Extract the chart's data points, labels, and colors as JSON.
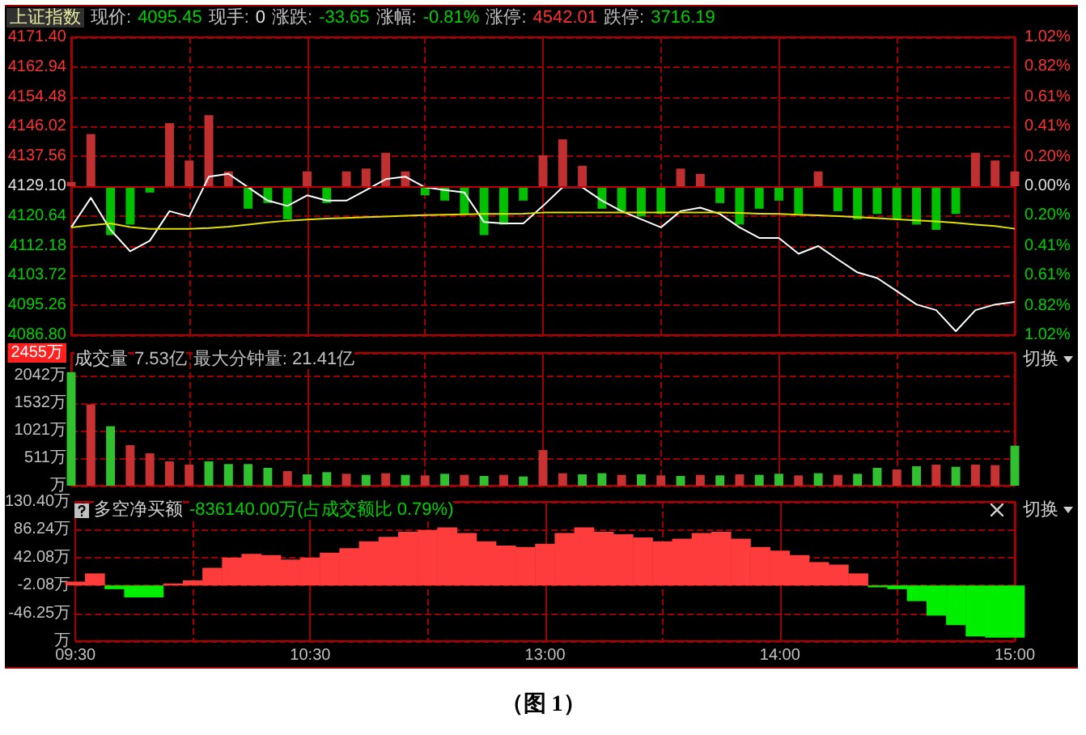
{
  "chart_data": [
    {
      "type": "line",
      "title": "上证指数",
      "annotations": [
        "现价:",
        "4095.45",
        "现手:",
        "0",
        "涨跌:",
        "-33.65",
        "涨幅:",
        "-0.81%",
        "涨停:",
        "4542.01",
        "跌停:",
        "3716.19"
      ],
      "tick_labels": "y",
      "grid": true,
      "marker": "none",
      "ylim": [
        4086.8,
        4171.4
      ],
      "yticks": [
        {
          "value": 4086.8,
          "label": "4086.80"
        },
        4095.26,
        4103.72,
        4112.18,
        4120.64,
        {
          "value": 4129.1,
          "label": "4129.10"
        },
        4137.56,
        4146.02,
        4154.48,
        4162.94,
        {
          "value": 4171.4,
          "label": "4171.40"
        }
      ],
      "y2lim": [
        -1.02,
        1.02
      ],
      "y2ticks": [
        {
          "value": -1.02,
          "label": "1.02%"
        },
        {
          "value": -0.82,
          "label": "0.82%"
        },
        {
          "value": -0.61,
          "label": "0.61%"
        },
        {
          "value": -0.41,
          "label": "0.41%"
        },
        {
          "value": -0.2,
          "label": "0.20%"
        },
        {
          "value": 0,
          "label": "0.00%"
        },
        {
          "value": 0.2,
          "label": "0.20%"
        },
        {
          "value": 0.41,
          "label": "0.41%"
        },
        {
          "value": 0.61,
          "label": "0.61%"
        },
        {
          "value": 0.82,
          "label": "0.82%"
        },
        {
          "value": 1.02,
          "label": "1.02%"
        }
      ],
      "ref_lines": [
        {
          "axis": "y",
          "value": 4129.1,
          "color": "#c00000"
        }
      ],
      "series": [
        {
          "type": "bar",
          "base": [
            4129.1,
            4129.1,
            4129.1,
            4129.1,
            4129.1,
            4129.1,
            4129.1,
            4129.1,
            4129.1,
            4129.1,
            4129.1,
            4129.1,
            4129.1,
            4129.1,
            4129.1,
            4129.1,
            4129.1,
            4129.1,
            4129.1,
            4129.1,
            4129.1,
            4129.1,
            4129.1,
            4129.1,
            4129.1,
            4129.1,
            4129.1,
            4129.1,
            4129.1,
            4129.1,
            4129.1,
            4129.1,
            4129.1,
            4129.1,
            4129.1,
            4129.1,
            4129.1,
            4129.1,
            4129.1,
            4129.1,
            4129.1,
            4129.1,
            4129.1,
            4129.1,
            4129.1,
            4129.1,
            4129.1,
            4129.1,
            4129.1
          ],
          "colors": [
            "#c03030",
            "#c03030",
            "#00c000",
            "#00c000",
            "#00c000",
            "#c03030",
            "#c03030",
            "#c03030",
            "#c03030",
            "#00c000",
            "#00c000",
            "#00c000",
            "#c03030",
            "#00c000",
            "#c03030",
            "#c03030",
            "#c03030",
            "#c03030",
            "#00c000",
            "#00c000",
            "#00c000",
            "#00c000",
            "#00c000",
            "#00c000",
            "#c03030",
            "#c03030",
            "#c03030",
            "#00c000",
            "#00c000",
            "#00c000",
            "#00c000",
            "#c03030",
            "#c03030",
            "#00c000",
            "#00c000",
            "#00c000",
            "#00c000",
            "#00c000",
            "#c03030",
            "#00c000",
            "#00c000",
            "#00c000",
            "#00c000",
            "#00c000",
            "#00c000",
            "#00c000",
            "#c03030",
            "#c03030",
            "#c03030"
          ],
          "values": [
            1.2,
            14.8,
            -13.9,
            -10.9,
            -1.8,
            17.9,
            7.3,
            20.2,
            4.2,
            -6.4,
            -4.8,
            -9.4,
            4.2,
            -4.8,
            4.2,
            5.0,
            9.5,
            4.2,
            -2.6,
            -4.1,
            -7.9,
            -13.9,
            -10.9,
            -4.1,
            8.8,
            13.3,
            5.8,
            -6.4,
            -7.1,
            -8.6,
            -7.9,
            5.0,
            3.5,
            -4.8,
            -10.9,
            -6.4,
            -4.1,
            -7.9,
            4.2,
            -7.1,
            -9.4,
            -7.9,
            -9.4,
            -10.9,
            -12.4,
            -7.9,
            9.5,
            7.3,
            4.2
          ]
        },
        {
          "color": "#ffffff",
          "values": [
            4117.4,
            4125.8,
            4116.7,
            4110.6,
            4113.6,
            4122.0,
            4120.5,
            4131.8,
            4132.6,
            4128.8,
            4125.0,
            4123.5,
            4126.5,
            4125.0,
            4125.0,
            4128.0,
            4131.1,
            4131.8,
            4128.8,
            4128.0,
            4127.3,
            4118.9,
            4118.5,
            4118.5,
            4123.5,
            4128.8,
            4128.8,
            4125.0,
            4122.0,
            4119.7,
            4117.4,
            4122.0,
            4123.0,
            4121.2,
            4117.4,
            4114.4,
            4114.4,
            4109.9,
            4112.1,
            4108.3,
            4104.6,
            4103.0,
            4099.3,
            4095.5,
            4093.9,
            4087.9,
            4093.9,
            4095.5,
            4096.2
          ]
        },
        {
          "color": "#e0e000",
          "values": [
            4117.4,
            4118.0,
            4118.5,
            4117.5,
            4117.0,
            4117.0,
            4117.0,
            4117.2,
            4117.6,
            4118.2,
            4118.8,
            4119.3,
            4119.6,
            4119.9,
            4120.1,
            4120.3,
            4120.5,
            4120.7,
            4120.9,
            4121.0,
            4121.1,
            4121.2,
            4121.2,
            4121.3,
            4121.6,
            4121.6,
            4121.6,
            4121.6,
            4121.6,
            4121.6,
            4121.6,
            4121.6,
            4121.6,
            4121.6,
            4121.5,
            4121.3,
            4121.2,
            4121.0,
            4120.8,
            4120.6,
            4120.3,
            4120.0,
            4119.7,
            4119.4,
            4119.1,
            4118.7,
            4118.2,
            4117.8,
            4117.0
          ]
        }
      ]
    },
    {
      "type": "bar",
      "title": "成交量",
      "annotations": [
        "7.53亿",
        "最大分钟量: 21.41亿",
        "切换"
      ],
      "tick_labels": "y",
      "grid": true,
      "ylim": [
        0,
        2455
      ],
      "yticks": [
        {
          "value": 0,
          "label": "万"
        },
        {
          "value": 511,
          "label": "511万"
        },
        {
          "value": 1021,
          "label": "1021万"
        },
        {
          "value": 1532,
          "label": "1532万"
        },
        {
          "value": 2042,
          "label": "2042万"
        },
        {
          "value": 2455,
          "label": "2455万"
        }
      ],
      "colors": [
        "#30c030",
        "#c83232",
        "#30c030",
        "#c83232",
        "#c83232",
        "#c83232",
        "#c83232",
        "#30c030",
        "#30c030",
        "#30c030",
        "#30c030",
        "#c83232",
        "#30c030",
        "#30c030",
        "#c83232",
        "#30c030",
        "#c83232",
        "#30c030",
        "#c83232",
        "#30c030",
        "#c83232",
        "#30c030",
        "#c83232",
        "#30c030",
        "#c83232",
        "#c83232",
        "#30c030",
        "#30c030",
        "#c83232",
        "#30c030",
        "#c83232",
        "#30c030",
        "#c83232",
        "#30c030",
        "#c83232",
        "#30c030",
        "#30c030",
        "#c83232",
        "#30c030",
        "#c83232",
        "#30c030",
        "#30c030",
        "#c83232",
        "#30c030",
        "#c83232",
        "#30c030",
        "#c83232",
        "#c83232",
        "#30c030"
      ],
      "values": [
        2100,
        1500,
        1100,
        750,
        600,
        450,
        390,
        450,
        400,
        400,
        330,
        270,
        210,
        250,
        220,
        200,
        230,
        200,
        190,
        220,
        200,
        180,
        200,
        170,
        660,
        230,
        210,
        230,
        200,
        210,
        190,
        180,
        200,
        190,
        210,
        200,
        220,
        190,
        230,
        200,
        220,
        330,
        300,
        360,
        390,
        350,
        390,
        380,
        740
      ]
    },
    {
      "type": "bar",
      "title": "多空净买额",
      "annotations": [
        "-836140.00万(占成交额比 0.79%)",
        "切换",
        "（图 1）"
      ],
      "categories": [
        "09:30",
        null,
        null,
        null,
        null,
        null,
        null,
        null,
        null,
        null,
        null,
        null,
        "10:30",
        null,
        null,
        null,
        null,
        null,
        null,
        null,
        null,
        null,
        null,
        null,
        "13:00",
        null,
        null,
        null,
        null,
        null,
        null,
        null,
        null,
        null,
        null,
        null,
        "14:00",
        null,
        null,
        null,
        null,
        null,
        null,
        null,
        null,
        null,
        null,
        null,
        "15:00"
      ],
      "grid": true,
      "ylim": [
        -90.41,
        130.4
      ],
      "yticks": [
        {
          "value": -90.41,
          "label": "万"
        },
        {
          "value": -46.25,
          "label": "-46.25万"
        },
        {
          "value": -2.08,
          "label": "-2.08万"
        },
        {
          "value": 42.08,
          "label": "42.08万"
        },
        {
          "value": 86.24,
          "label": "86.24万"
        },
        {
          "value": 130.4,
          "label": "130.40万"
        }
      ],
      "base": [
        -2.08,
        -2.08,
        -2.08,
        -2.08,
        -2.08,
        -2.08,
        -2.08,
        -2.08,
        -2.08,
        -2.08,
        -2.08,
        -2.08,
        -2.08,
        -2.08,
        -2.08,
        -2.08,
        -2.08,
        -2.08,
        -2.08,
        -2.08,
        -2.08,
        -2.08,
        -2.08,
        -2.08,
        -2.08,
        -2.08,
        -2.08,
        -2.08,
        -2.08,
        -2.08,
        -2.08,
        -2.08,
        -2.08,
        -2.08,
        -2.08,
        -2.08,
        -2.08,
        -2.08,
        -2.08,
        -2.08,
        -2.08,
        -2.08,
        -2.08,
        -2.08,
        -2.08,
        -2.08,
        -2.08,
        -2.08,
        -2.08
      ],
      "colors": [
        "#ff3c3c",
        "#ff3c3c",
        "#00ee00",
        "#00ee00",
        "#00ee00",
        "#ff3c3c",
        "#ff3c3c",
        "#ff3c3c",
        "#ff3c3c",
        "#ff3c3c",
        "#ff3c3c",
        "#ff3c3c",
        "#ff3c3c",
        "#ff3c3c",
        "#ff3c3c",
        "#ff3c3c",
        "#ff3c3c",
        "#ff3c3c",
        "#ff3c3c",
        "#ff3c3c",
        "#ff3c3c",
        "#ff3c3c",
        "#ff3c3c",
        "#ff3c3c",
        "#ff3c3c",
        "#ff3c3c",
        "#ff3c3c",
        "#ff3c3c",
        "#ff3c3c",
        "#ff3c3c",
        "#ff3c3c",
        "#ff3c3c",
        "#ff3c3c",
        "#ff3c3c",
        "#ff3c3c",
        "#ff3c3c",
        "#ff3c3c",
        "#ff3c3c",
        "#ff3c3c",
        "#ff3c3c",
        "#ff3c3c",
        "#00ee00",
        "#00ee00",
        "#00ee00",
        "#00ee00",
        "#00ee00",
        "#00ee00",
        "#00ee00",
        "#00ee00"
      ],
      "values": [
        6,
        19,
        -6,
        -19,
        -19,
        3,
        8,
        28,
        44,
        50,
        48,
        41,
        44,
        52,
        59,
        70,
        77,
        85,
        88,
        92,
        83,
        70,
        63,
        61,
        66,
        83,
        92,
        85,
        81,
        76,
        70,
        74,
        83,
        85,
        74,
        61,
        55,
        48,
        37,
        33,
        19,
        -3,
        -6,
        -25,
        -48,
        -63,
        -81,
        -83,
        -83
      ]
    }
  ]
}
